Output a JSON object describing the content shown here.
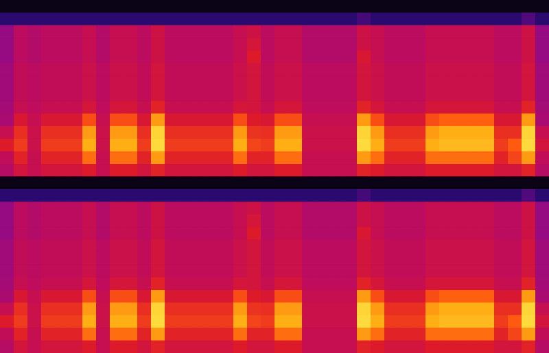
{
  "chart_data": [
    {
      "type": "heatmap",
      "tick_labels": false,
      "zlim": [
        0,
        1
      ],
      "cells": [
        [
          0.03,
          0.03,
          0.03,
          0.03,
          0.03,
          0.03,
          0.03,
          0.03,
          0.03,
          0.03,
          0.03,
          0.03,
          0.03,
          0.03,
          0.03,
          0.03,
          0.03,
          0.03,
          0.03,
          0.03,
          0.03,
          0.03,
          0.03,
          0.03,
          0.03,
          0.03,
          0.03,
          0.03,
          0.03,
          0.03,
          0.03,
          0.03,
          0.03,
          0.03,
          0.03,
          0.03,
          0.03,
          0.03,
          0.03,
          0.03
        ],
        [
          0.2,
          0.2,
          0.2,
          0.2,
          0.2,
          0.2,
          0.2,
          0.2,
          0.2,
          0.2,
          0.2,
          0.2,
          0.2,
          0.2,
          0.2,
          0.2,
          0.2,
          0.2,
          0.2,
          0.2,
          0.2,
          0.2,
          0.2,
          0.2,
          0.2,
          0.2,
          0.24,
          0.2,
          0.2,
          0.2,
          0.2,
          0.2,
          0.2,
          0.2,
          0.2,
          0.2,
          0.2,
          0.2,
          0.26,
          0.2
        ],
        [
          0.38,
          0.46,
          0.44,
          0.46,
          0.46,
          0.46,
          0.5,
          0.44,
          0.5,
          0.5,
          0.46,
          0.53,
          0.46,
          0.46,
          0.46,
          0.46,
          0.46,
          0.5,
          0.53,
          0.46,
          0.5,
          0.5,
          0.44,
          0.44,
          0.44,
          0.44,
          0.53,
          0.5,
          0.46,
          0.46,
          0.46,
          0.5,
          0.5,
          0.5,
          0.5,
          0.5,
          0.46,
          0.46,
          0.53,
          0.38
        ],
        [
          0.38,
          0.46,
          0.44,
          0.46,
          0.46,
          0.46,
          0.5,
          0.44,
          0.5,
          0.5,
          0.46,
          0.53,
          0.46,
          0.46,
          0.46,
          0.46,
          0.46,
          0.5,
          0.56,
          0.46,
          0.5,
          0.5,
          0.44,
          0.44,
          0.44,
          0.44,
          0.53,
          0.5,
          0.46,
          0.46,
          0.46,
          0.5,
          0.5,
          0.5,
          0.5,
          0.5,
          0.46,
          0.46,
          0.53,
          0.38
        ],
        [
          0.38,
          0.46,
          0.44,
          0.46,
          0.46,
          0.46,
          0.5,
          0.44,
          0.5,
          0.5,
          0.46,
          0.53,
          0.46,
          0.46,
          0.46,
          0.46,
          0.46,
          0.5,
          0.6,
          0.46,
          0.5,
          0.5,
          0.44,
          0.44,
          0.44,
          0.44,
          0.58,
          0.5,
          0.46,
          0.46,
          0.46,
          0.5,
          0.5,
          0.5,
          0.5,
          0.5,
          0.46,
          0.46,
          0.53,
          0.38
        ],
        [
          0.4,
          0.48,
          0.46,
          0.48,
          0.48,
          0.48,
          0.52,
          0.46,
          0.52,
          0.52,
          0.48,
          0.55,
          0.48,
          0.48,
          0.48,
          0.48,
          0.48,
          0.52,
          0.55,
          0.48,
          0.52,
          0.52,
          0.46,
          0.46,
          0.46,
          0.46,
          0.55,
          0.52,
          0.48,
          0.48,
          0.48,
          0.52,
          0.52,
          0.52,
          0.52,
          0.52,
          0.48,
          0.48,
          0.55,
          0.4
        ],
        [
          0.4,
          0.48,
          0.46,
          0.48,
          0.48,
          0.48,
          0.52,
          0.46,
          0.52,
          0.52,
          0.48,
          0.55,
          0.48,
          0.48,
          0.48,
          0.48,
          0.48,
          0.52,
          0.55,
          0.48,
          0.52,
          0.52,
          0.46,
          0.46,
          0.46,
          0.46,
          0.55,
          0.52,
          0.48,
          0.48,
          0.48,
          0.52,
          0.52,
          0.52,
          0.52,
          0.52,
          0.48,
          0.48,
          0.55,
          0.4
        ],
        [
          0.4,
          0.48,
          0.46,
          0.48,
          0.48,
          0.48,
          0.52,
          0.46,
          0.52,
          0.52,
          0.48,
          0.55,
          0.48,
          0.48,
          0.48,
          0.48,
          0.48,
          0.52,
          0.55,
          0.48,
          0.52,
          0.52,
          0.46,
          0.46,
          0.46,
          0.46,
          0.55,
          0.52,
          0.48,
          0.48,
          0.48,
          0.52,
          0.52,
          0.52,
          0.52,
          0.52,
          0.48,
          0.48,
          0.55,
          0.4
        ],
        [
          0.41,
          0.5,
          0.47,
          0.5,
          0.5,
          0.5,
          0.56,
          0.47,
          0.56,
          0.56,
          0.5,
          0.62,
          0.5,
          0.5,
          0.5,
          0.5,
          0.5,
          0.56,
          0.55,
          0.5,
          0.56,
          0.56,
          0.47,
          0.47,
          0.47,
          0.47,
          0.62,
          0.56,
          0.5,
          0.5,
          0.5,
          0.56,
          0.56,
          0.56,
          0.56,
          0.56,
          0.5,
          0.5,
          0.62,
          0.41
        ],
        [
          0.42,
          0.58,
          0.5,
          0.58,
          0.58,
          0.58,
          0.72,
          0.5,
          0.72,
          0.72,
          0.58,
          0.85,
          0.58,
          0.58,
          0.58,
          0.58,
          0.58,
          0.72,
          0.6,
          0.58,
          0.72,
          0.72,
          0.5,
          0.5,
          0.5,
          0.5,
          0.85,
          0.72,
          0.58,
          0.58,
          0.58,
          0.72,
          0.76,
          0.76,
          0.76,
          0.76,
          0.58,
          0.58,
          0.85,
          0.42
        ],
        [
          0.5,
          0.65,
          0.52,
          0.65,
          0.65,
          0.65,
          0.85,
          0.52,
          0.85,
          0.85,
          0.65,
          0.95,
          0.65,
          0.65,
          0.65,
          0.65,
          0.65,
          0.85,
          0.66,
          0.65,
          0.85,
          0.85,
          0.52,
          0.52,
          0.52,
          0.52,
          0.95,
          0.85,
          0.65,
          0.65,
          0.65,
          0.85,
          0.88,
          0.88,
          0.88,
          0.88,
          0.65,
          0.65,
          0.95,
          0.5
        ],
        [
          0.6,
          0.68,
          0.52,
          0.68,
          0.68,
          0.68,
          0.88,
          0.52,
          0.88,
          0.88,
          0.68,
          0.96,
          0.68,
          0.68,
          0.68,
          0.68,
          0.68,
          0.88,
          0.7,
          0.68,
          0.88,
          0.88,
          0.52,
          0.52,
          0.52,
          0.52,
          0.96,
          0.88,
          0.68,
          0.68,
          0.68,
          0.88,
          0.9,
          0.9,
          0.9,
          0.9,
          0.68,
          0.75,
          0.96,
          0.55
        ],
        [
          0.48,
          0.62,
          0.5,
          0.62,
          0.62,
          0.62,
          0.78,
          0.5,
          0.78,
          0.78,
          0.62,
          0.85,
          0.62,
          0.62,
          0.62,
          0.62,
          0.62,
          0.78,
          0.62,
          0.62,
          0.78,
          0.78,
          0.5,
          0.5,
          0.5,
          0.5,
          0.85,
          0.78,
          0.62,
          0.62,
          0.62,
          0.78,
          0.78,
          0.78,
          0.78,
          0.78,
          0.62,
          0.7,
          0.85,
          0.48
        ],
        [
          0.45,
          0.55,
          0.5,
          0.55,
          0.55,
          0.55,
          0.6,
          0.5,
          0.6,
          0.6,
          0.55,
          0.62,
          0.55,
          0.55,
          0.55,
          0.55,
          0.55,
          0.6,
          0.55,
          0.55,
          0.6,
          0.6,
          0.5,
          0.5,
          0.5,
          0.5,
          0.62,
          0.6,
          0.55,
          0.55,
          0.55,
          0.6,
          0.6,
          0.6,
          0.6,
          0.6,
          0.55,
          0.55,
          0.62,
          0.45
        ]
      ]
    },
    {
      "type": "heatmap",
      "tick_labels": false,
      "zlim": [
        0,
        1
      ],
      "cells": [
        [
          0.03,
          0.03,
          0.03,
          0.03,
          0.03,
          0.03,
          0.03,
          0.03,
          0.03,
          0.03,
          0.03,
          0.03,
          0.03,
          0.03,
          0.03,
          0.03,
          0.03,
          0.03,
          0.03,
          0.03,
          0.03,
          0.03,
          0.03,
          0.03,
          0.03,
          0.03,
          0.03,
          0.03,
          0.03,
          0.03,
          0.03,
          0.03,
          0.03,
          0.03,
          0.03,
          0.03,
          0.03,
          0.03,
          0.03,
          0.03
        ],
        [
          0.2,
          0.2,
          0.2,
          0.2,
          0.2,
          0.2,
          0.2,
          0.2,
          0.2,
          0.2,
          0.2,
          0.2,
          0.2,
          0.2,
          0.2,
          0.2,
          0.2,
          0.2,
          0.2,
          0.2,
          0.2,
          0.2,
          0.2,
          0.2,
          0.2,
          0.2,
          0.24,
          0.2,
          0.2,
          0.2,
          0.2,
          0.2,
          0.2,
          0.2,
          0.2,
          0.2,
          0.2,
          0.2,
          0.26,
          0.2
        ],
        [
          0.38,
          0.46,
          0.44,
          0.46,
          0.46,
          0.46,
          0.5,
          0.44,
          0.5,
          0.5,
          0.46,
          0.53,
          0.46,
          0.46,
          0.46,
          0.46,
          0.46,
          0.5,
          0.53,
          0.46,
          0.5,
          0.5,
          0.44,
          0.44,
          0.44,
          0.44,
          0.53,
          0.5,
          0.46,
          0.46,
          0.46,
          0.5,
          0.5,
          0.5,
          0.5,
          0.5,
          0.46,
          0.46,
          0.53,
          0.38
        ],
        [
          0.38,
          0.46,
          0.44,
          0.46,
          0.46,
          0.46,
          0.5,
          0.44,
          0.5,
          0.5,
          0.46,
          0.53,
          0.46,
          0.46,
          0.46,
          0.46,
          0.46,
          0.5,
          0.56,
          0.46,
          0.5,
          0.5,
          0.44,
          0.44,
          0.44,
          0.44,
          0.53,
          0.5,
          0.46,
          0.46,
          0.46,
          0.5,
          0.5,
          0.5,
          0.5,
          0.5,
          0.46,
          0.46,
          0.53,
          0.38
        ],
        [
          0.38,
          0.46,
          0.44,
          0.46,
          0.46,
          0.46,
          0.5,
          0.44,
          0.5,
          0.5,
          0.46,
          0.53,
          0.46,
          0.46,
          0.46,
          0.46,
          0.46,
          0.5,
          0.6,
          0.46,
          0.5,
          0.5,
          0.44,
          0.44,
          0.44,
          0.44,
          0.58,
          0.5,
          0.46,
          0.46,
          0.46,
          0.5,
          0.5,
          0.5,
          0.5,
          0.5,
          0.46,
          0.46,
          0.53,
          0.38
        ],
        [
          0.4,
          0.48,
          0.46,
          0.48,
          0.48,
          0.48,
          0.52,
          0.46,
          0.52,
          0.52,
          0.48,
          0.55,
          0.48,
          0.48,
          0.48,
          0.48,
          0.48,
          0.52,
          0.55,
          0.48,
          0.52,
          0.52,
          0.46,
          0.46,
          0.46,
          0.46,
          0.55,
          0.52,
          0.48,
          0.48,
          0.48,
          0.52,
          0.52,
          0.52,
          0.52,
          0.52,
          0.48,
          0.48,
          0.55,
          0.4
        ],
        [
          0.4,
          0.48,
          0.46,
          0.48,
          0.48,
          0.48,
          0.52,
          0.46,
          0.52,
          0.52,
          0.48,
          0.55,
          0.48,
          0.48,
          0.48,
          0.48,
          0.48,
          0.52,
          0.55,
          0.48,
          0.52,
          0.52,
          0.46,
          0.46,
          0.46,
          0.46,
          0.55,
          0.52,
          0.48,
          0.48,
          0.48,
          0.52,
          0.52,
          0.52,
          0.52,
          0.52,
          0.48,
          0.48,
          0.55,
          0.4
        ],
        [
          0.4,
          0.48,
          0.46,
          0.48,
          0.48,
          0.48,
          0.52,
          0.46,
          0.52,
          0.52,
          0.48,
          0.55,
          0.48,
          0.48,
          0.48,
          0.48,
          0.48,
          0.52,
          0.55,
          0.48,
          0.52,
          0.52,
          0.46,
          0.46,
          0.46,
          0.46,
          0.55,
          0.52,
          0.48,
          0.48,
          0.48,
          0.52,
          0.52,
          0.52,
          0.52,
          0.52,
          0.48,
          0.48,
          0.55,
          0.4
        ],
        [
          0.41,
          0.5,
          0.47,
          0.5,
          0.5,
          0.5,
          0.56,
          0.47,
          0.56,
          0.56,
          0.5,
          0.62,
          0.5,
          0.5,
          0.5,
          0.5,
          0.5,
          0.56,
          0.55,
          0.5,
          0.56,
          0.56,
          0.47,
          0.47,
          0.47,
          0.47,
          0.62,
          0.56,
          0.5,
          0.5,
          0.5,
          0.56,
          0.56,
          0.56,
          0.56,
          0.56,
          0.5,
          0.5,
          0.62,
          0.41
        ],
        [
          0.42,
          0.58,
          0.5,
          0.58,
          0.58,
          0.58,
          0.72,
          0.5,
          0.72,
          0.72,
          0.58,
          0.85,
          0.58,
          0.58,
          0.58,
          0.58,
          0.58,
          0.72,
          0.6,
          0.58,
          0.72,
          0.72,
          0.5,
          0.5,
          0.5,
          0.5,
          0.85,
          0.72,
          0.58,
          0.58,
          0.58,
          0.72,
          0.76,
          0.76,
          0.76,
          0.76,
          0.58,
          0.58,
          0.85,
          0.42
        ],
        [
          0.5,
          0.65,
          0.52,
          0.65,
          0.65,
          0.65,
          0.85,
          0.52,
          0.85,
          0.85,
          0.65,
          0.95,
          0.65,
          0.65,
          0.65,
          0.65,
          0.65,
          0.85,
          0.66,
          0.65,
          0.85,
          0.85,
          0.52,
          0.52,
          0.52,
          0.52,
          0.95,
          0.85,
          0.65,
          0.65,
          0.65,
          0.85,
          0.88,
          0.88,
          0.88,
          0.88,
          0.65,
          0.65,
          0.95,
          0.5
        ],
        [
          0.6,
          0.68,
          0.52,
          0.68,
          0.68,
          0.68,
          0.88,
          0.52,
          0.88,
          0.88,
          0.68,
          0.96,
          0.68,
          0.68,
          0.68,
          0.68,
          0.68,
          0.88,
          0.7,
          0.68,
          0.88,
          0.88,
          0.52,
          0.52,
          0.52,
          0.52,
          0.96,
          0.88,
          0.68,
          0.68,
          0.68,
          0.88,
          0.9,
          0.9,
          0.9,
          0.9,
          0.68,
          0.75,
          0.96,
          0.55
        ],
        [
          0.48,
          0.62,
          0.5,
          0.62,
          0.62,
          0.62,
          0.78,
          0.5,
          0.78,
          0.78,
          0.62,
          0.85,
          0.62,
          0.62,
          0.62,
          0.62,
          0.62,
          0.78,
          0.62,
          0.62,
          0.78,
          0.78,
          0.5,
          0.5,
          0.5,
          0.5,
          0.85,
          0.78,
          0.62,
          0.62,
          0.62,
          0.78,
          0.78,
          0.78,
          0.78,
          0.78,
          0.62,
          0.7,
          0.85,
          0.48
        ],
        [
          0.45,
          0.55,
          0.5,
          0.55,
          0.55,
          0.55,
          0.6,
          0.5,
          0.6,
          0.6,
          0.55,
          0.62,
          0.55,
          0.55,
          0.55,
          0.55,
          0.55,
          0.6,
          0.55,
          0.55,
          0.6,
          0.6,
          0.5,
          0.5,
          0.5,
          0.5,
          0.62,
          0.6,
          0.55,
          0.55,
          0.55,
          0.6,
          0.6,
          0.6,
          0.6,
          0.6,
          0.55,
          0.55,
          0.62,
          0.45
        ]
      ]
    }
  ]
}
